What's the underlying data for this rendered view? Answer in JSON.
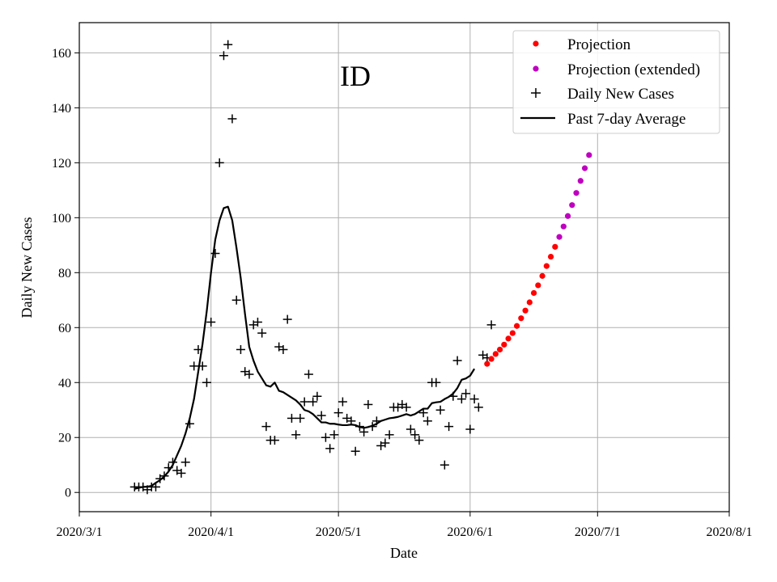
{
  "chart_data": {
    "type": "line",
    "title": "ID",
    "xlabel": "Date",
    "ylabel": "Daily New Cases",
    "grid": true,
    "legend_position": "top-right",
    "x_type": "date",
    "xlim": [
      "2020-03-01",
      "2020-08-01"
    ],
    "ylim": [
      -7,
      171
    ],
    "x_ticks": [
      {
        "date": "2020-03-01",
        "label": "2020/3/1"
      },
      {
        "date": "2020-04-01",
        "label": "2020/4/1"
      },
      {
        "date": "2020-05-01",
        "label": "2020/5/1"
      },
      {
        "date": "2020-06-01",
        "label": "2020/6/1"
      },
      {
        "date": "2020-07-01",
        "label": "2020/7/1"
      },
      {
        "date": "2020-08-01",
        "label": "2020/8/1"
      }
    ],
    "y_ticks": [
      0,
      20,
      40,
      60,
      80,
      100,
      120,
      140,
      160
    ],
    "series": [
      {
        "name": "Projection",
        "kind": "dots",
        "color": "#ff0000",
        "start_date": "2020-06-05",
        "values": [
          46.8,
          48.6,
          50.4,
          52.0,
          53.8,
          56.0,
          58.0,
          60.6,
          63.4,
          66.2,
          69.2,
          72.6,
          75.4,
          78.8,
          82.4,
          85.8,
          89.4
        ]
      },
      {
        "name": "Projection (extended)",
        "kind": "dots",
        "color": "#bf00bf",
        "start_date": "2020-06-22",
        "values": [
          93.0,
          96.8,
          100.6,
          104.6,
          109.0,
          113.4,
          118.0,
          122.8
        ]
      },
      {
        "name": "Daily New Cases",
        "kind": "plus",
        "color": "#000000",
        "start_date": "2020-03-14",
        "values": [
          2,
          2,
          2,
          1,
          2,
          2,
          5,
          6,
          9,
          11,
          8,
          7,
          11,
          25,
          46,
          52,
          46,
          40,
          62,
          87,
          120,
          159,
          163,
          136,
          70,
          52,
          44,
          43,
          61,
          62,
          58,
          24,
          19,
          19,
          53,
          52,
          63,
          27,
          21,
          27,
          33,
          43,
          33,
          35,
          28,
          20,
          16,
          21,
          29,
          33,
          27,
          26,
          15,
          24,
          22,
          32,
          24,
          26,
          17,
          18,
          21,
          31,
          31,
          32,
          31,
          23,
          21,
          19,
          29,
          26,
          40,
          40,
          30,
          10,
          24,
          35,
          48,
          34,
          36,
          23,
          34,
          31,
          50,
          49,
          61
        ]
      },
      {
        "name": "Past 7-day Average",
        "kind": "line",
        "color": "#000000",
        "start_date": "2020-03-14",
        "values": [
          1.3,
          1.7,
          2.0,
          2.1,
          2.4,
          3.5,
          4.5,
          5.8,
          7.6,
          10.0,
          13.5,
          17.0,
          21.5,
          27.0,
          34.0,
          44.0,
          54.0,
          66.0,
          80.0,
          92.0,
          99.0,
          103.5,
          104.0,
          99.0,
          89.0,
          78.0,
          65.0,
          53.0,
          48.0,
          44.0,
          41.5,
          39.0,
          38.5,
          40.0,
          37.0,
          36.5,
          35.5,
          34.5,
          33.5,
          32.0,
          30.0,
          29.5,
          28.5,
          27.0,
          25.5,
          25.5,
          25.0,
          25.0,
          24.7,
          24.5,
          24.5,
          24.7,
          24.5,
          23.8,
          23.5,
          23.8,
          24.3,
          25.0,
          26.0,
          26.5,
          27.0,
          27.2,
          27.5,
          28.0,
          28.5,
          28.0,
          28.5,
          29.5,
          30.5,
          30.5,
          32.5,
          32.8,
          33.0,
          34.0,
          34.8,
          36.0,
          38.0,
          41.0,
          41.5,
          42.5,
          45.0
        ]
      }
    ]
  }
}
